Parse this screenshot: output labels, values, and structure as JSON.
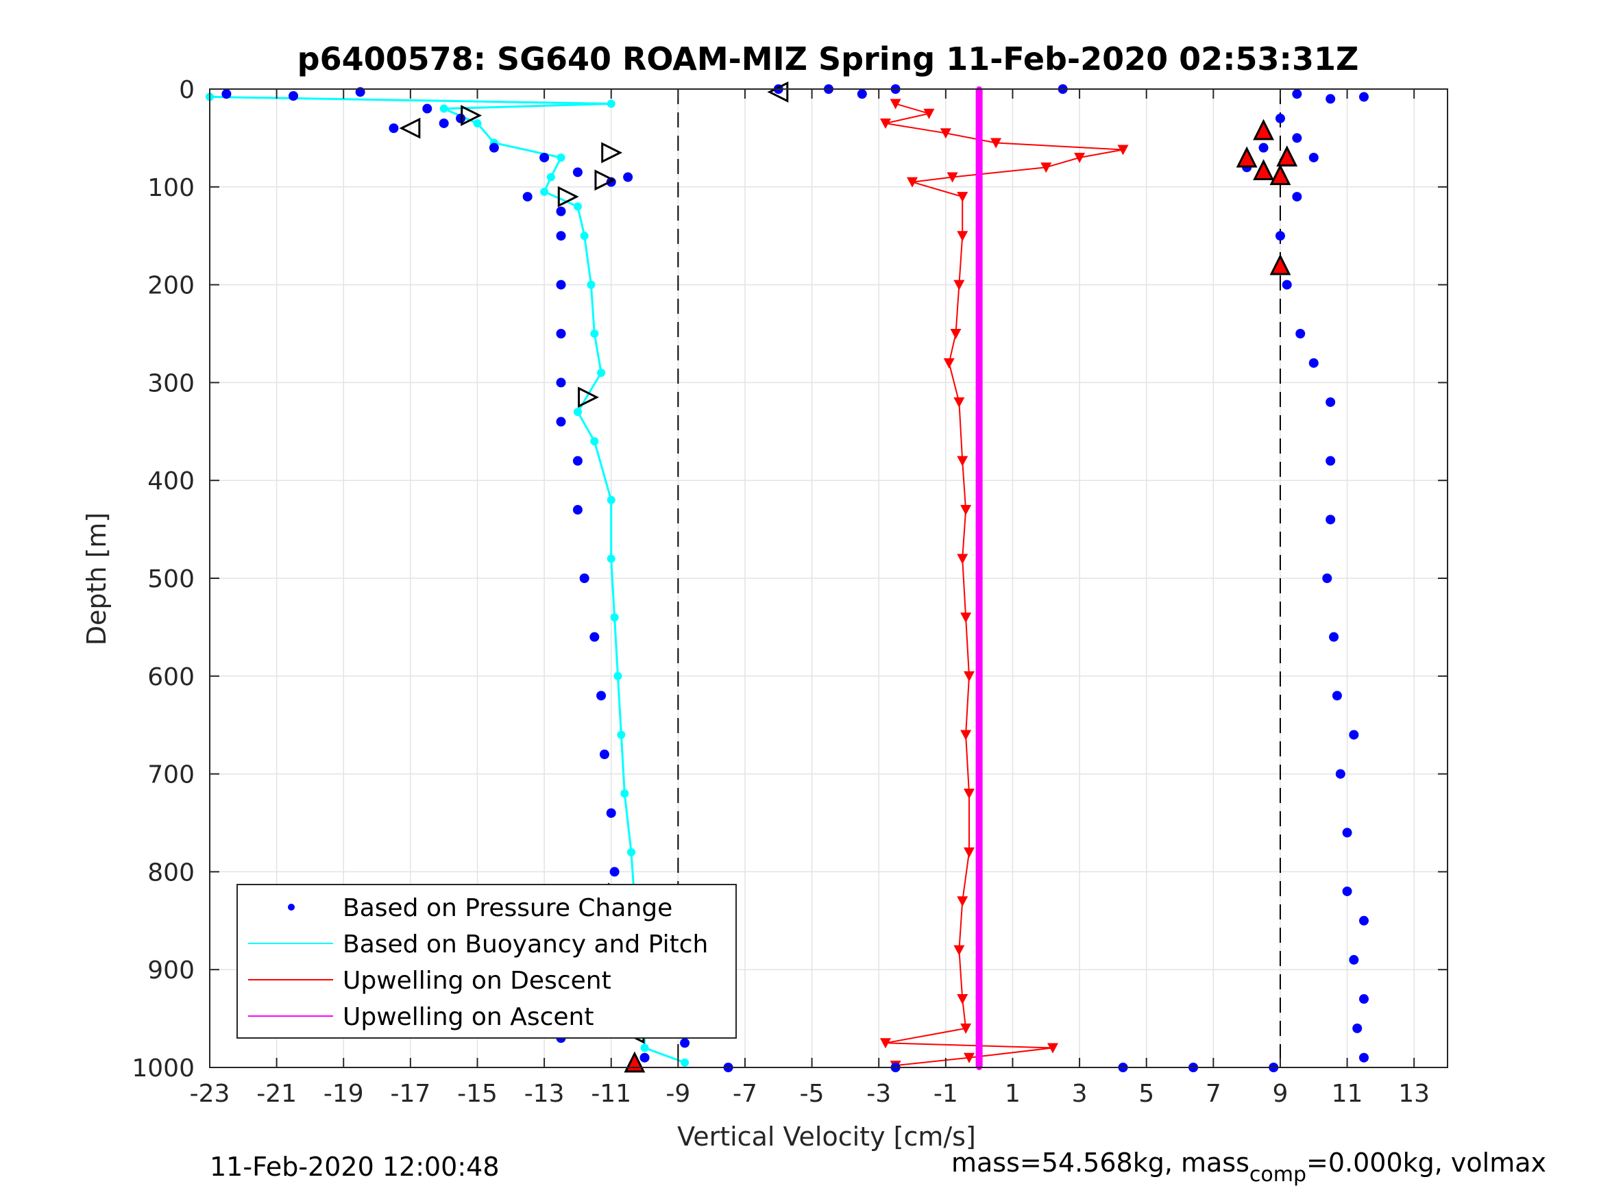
{
  "chart_data": {
    "type": "scatter",
    "title": "p6400578: SG640 ROAM-MIZ Spring 11-Feb-2020 02:53:31Z",
    "xlabel": "Vertical Velocity [cm/s]",
    "ylabel": "Depth [m]",
    "xlim": [
      -23,
      14
    ],
    "ylim": [
      0,
      1000
    ],
    "y_reversed": true,
    "grid": true,
    "legend_position": "bottom-left",
    "x_ticks": [
      -23,
      -21,
      -19,
      -17,
      -15,
      -13,
      -11,
      -9,
      -7,
      -5,
      -3,
      -1,
      1,
      3,
      5,
      7,
      9,
      11,
      13
    ],
    "x_tick_labels": [
      "-23",
      "-21",
      "-19",
      "-17",
      "-15",
      "-13",
      "-11",
      "-9",
      "-7",
      "-5",
      "-3",
      "-1",
      "1",
      "3",
      "5",
      "7",
      "9",
      "11",
      "13"
    ],
    "y_ticks": [
      0,
      100,
      200,
      300,
      400,
      500,
      600,
      700,
      800,
      900,
      1000
    ],
    "y_tick_labels": [
      "0",
      "100",
      "200",
      "300",
      "400",
      "500",
      "600",
      "700",
      "800",
      "900",
      "1000"
    ],
    "reference_lines_x": [
      -9,
      9
    ],
    "legend": [
      {
        "label": "Based on Pressure Change",
        "color": "#0000ff",
        "marker": "dot"
      },
      {
        "label": "Based on Buoyancy and Pitch",
        "color": "#00ffff",
        "marker": "line"
      },
      {
        "label": "Upwelling on Descent",
        "color": "#ff0000",
        "marker": "line"
      },
      {
        "label": "Upwelling on Ascent",
        "color": "#ff00ff",
        "marker": "line"
      }
    ],
    "series": [
      {
        "name": "Based on Pressure Change",
        "color": "#0000ff",
        "dive_points": [
          [
            -22.5,
            5
          ],
          [
            -20.5,
            7
          ],
          [
            -18.5,
            3
          ],
          [
            -16.5,
            20
          ],
          [
            -17.5,
            40
          ],
          [
            -16,
            35
          ],
          [
            -15.5,
            30
          ],
          [
            -14.5,
            60
          ],
          [
            -13,
            70
          ],
          [
            -12,
            85
          ],
          [
            -11,
            95
          ],
          [
            -10.5,
            90
          ],
          [
            -13.5,
            110
          ],
          [
            -12.5,
            125
          ],
          [
            -12.5,
            150
          ],
          [
            -12.5,
            200
          ],
          [
            -12.5,
            250
          ],
          [
            -12.5,
            300
          ],
          [
            -12.5,
            340
          ],
          [
            -12,
            380
          ],
          [
            -12,
            430
          ],
          [
            -11.8,
            500
          ],
          [
            -11.5,
            560
          ],
          [
            -11.3,
            620
          ],
          [
            -11.2,
            680
          ],
          [
            -11,
            740
          ],
          [
            -10.9,
            800
          ],
          [
            -10.7,
            850
          ],
          [
            -10.7,
            880
          ],
          [
            -10.5,
            930
          ],
          [
            -10.5,
            960
          ],
          [
            -12.5,
            970
          ],
          [
            -10,
            990
          ],
          [
            -8.8,
            975
          ],
          [
            -7.5,
            1000
          ]
        ],
        "climb_points": [
          [
            9.5,
            5
          ],
          [
            10.5,
            10
          ],
          [
            11.5,
            8
          ],
          [
            9,
            30
          ],
          [
            8.5,
            60
          ],
          [
            8,
            80
          ],
          [
            9.5,
            50
          ],
          [
            10,
            70
          ],
          [
            9.5,
            110
          ],
          [
            9,
            150
          ],
          [
            9.2,
            200
          ],
          [
            9.6,
            250
          ],
          [
            10,
            280
          ],
          [
            10.5,
            320
          ],
          [
            10.5,
            380
          ],
          [
            10.5,
            440
          ],
          [
            10.4,
            500
          ],
          [
            10.6,
            560
          ],
          [
            10.7,
            620
          ],
          [
            11.2,
            660
          ],
          [
            10.8,
            700
          ],
          [
            11,
            760
          ],
          [
            11,
            820
          ],
          [
            11.5,
            850
          ],
          [
            11.2,
            890
          ],
          [
            11.5,
            930
          ],
          [
            11.3,
            960
          ],
          [
            11.5,
            990
          ]
        ],
        "outliers": [
          [
            -6,
            0
          ],
          [
            -4.5,
            0
          ],
          [
            -3.5,
            5
          ],
          [
            -2.5,
            0
          ],
          [
            2.5,
            0
          ],
          [
            4.3,
            1000
          ],
          [
            6.4,
            1000
          ],
          [
            -2.5,
            1000
          ],
          [
            8.8,
            1000
          ]
        ]
      },
      {
        "name": "Based on Buoyancy and Pitch",
        "color": "#00ffff",
        "points": [
          [
            -23,
            8
          ],
          [
            -11,
            15
          ],
          [
            -16,
            20
          ],
          [
            -15,
            35
          ],
          [
            -14.5,
            55
          ],
          [
            -12.5,
            70
          ],
          [
            -12.8,
            90
          ],
          [
            -13,
            105
          ],
          [
            -12,
            120
          ],
          [
            -11.8,
            150
          ],
          [
            -11.6,
            200
          ],
          [
            -11.5,
            250
          ],
          [
            -11.3,
            290
          ],
          [
            -12,
            330
          ],
          [
            -11.5,
            360
          ],
          [
            -11,
            420
          ],
          [
            -11,
            480
          ],
          [
            -10.9,
            540
          ],
          [
            -10.8,
            600
          ],
          [
            -10.7,
            660
          ],
          [
            -10.6,
            720
          ],
          [
            -10.4,
            780
          ],
          [
            -10.3,
            830
          ],
          [
            -10.2,
            870
          ],
          [
            -10.1,
            910
          ],
          [
            -10,
            950
          ],
          [
            -10,
            980
          ],
          [
            -8.8,
            995
          ]
        ]
      },
      {
        "name": "Upwelling on Descent",
        "color": "#ff0000",
        "points": [
          [
            -2.5,
            15
          ],
          [
            -1.5,
            25
          ],
          [
            -2.8,
            35
          ],
          [
            -1,
            45
          ],
          [
            0.5,
            55
          ],
          [
            4.3,
            62
          ],
          [
            3,
            70
          ],
          [
            2,
            80
          ],
          [
            -0.8,
            90
          ],
          [
            -2,
            95
          ],
          [
            -0.5,
            110
          ],
          [
            -0.5,
            150
          ],
          [
            -0.6,
            200
          ],
          [
            -0.7,
            250
          ],
          [
            -0.9,
            280
          ],
          [
            -0.6,
            320
          ],
          [
            -0.5,
            380
          ],
          [
            -0.4,
            430
          ],
          [
            -0.5,
            480
          ],
          [
            -0.4,
            540
          ],
          [
            -0.3,
            600
          ],
          [
            -0.4,
            660
          ],
          [
            -0.3,
            720
          ],
          [
            -0.3,
            780
          ],
          [
            -0.5,
            830
          ],
          [
            -0.6,
            880
          ],
          [
            -0.5,
            930
          ],
          [
            -0.4,
            960
          ],
          [
            -2.8,
            975
          ],
          [
            2.2,
            980
          ],
          [
            -0.3,
            990
          ],
          [
            -2.5,
            998
          ]
        ]
      },
      {
        "name": "Upwelling on Ascent",
        "color": "#ff00ff",
        "points": [
          [
            0,
            0
          ],
          [
            0,
            1000
          ]
        ]
      }
    ],
    "markers": {
      "descent_triangles_left": [
        [
          -6,
          3
        ],
        [
          -17,
          40
        ],
        [
          -10.8,
          900
        ],
        [
          -10.3,
          965
        ]
      ],
      "descent_triangles_right": [
        [
          -15.2,
          27
        ],
        [
          -11,
          65
        ],
        [
          -11.2,
          93
        ],
        [
          -12.3,
          110
        ],
        [
          -11.7,
          315
        ],
        [
          -10.8,
          822
        ],
        [
          -10.7,
          850
        ],
        [
          -10.6,
          885
        ]
      ],
      "apogee_red_triangles": [
        [
          -10.3,
          995
        ],
        [
          8.5,
          42
        ],
        [
          8,
          70
        ],
        [
          8.5,
          83
        ],
        [
          9.2,
          69
        ],
        [
          9,
          88
        ],
        [
          9,
          180
        ]
      ]
    }
  },
  "footer": {
    "left": "11-Feb-2020 12:00:48",
    "right_pre": "mass=54.568kg, mass",
    "right_sub": "comp",
    "right_post": "=0.000kg, volmax"
  }
}
